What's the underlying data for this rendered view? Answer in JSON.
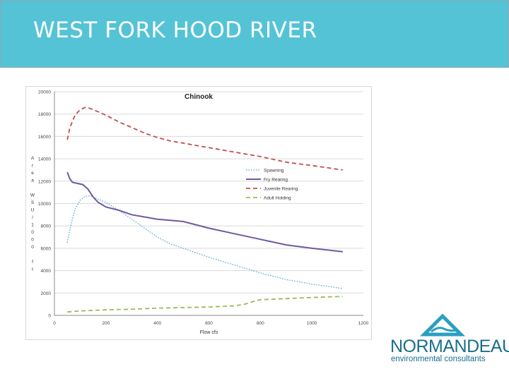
{
  "header": {
    "title": "WEST FORK HOOD RIVER"
  },
  "logo": {
    "name": "NORMANDEAU",
    "tagline": "environmental consultants",
    "accent_color": "#2a9fc1"
  },
  "colors": {
    "header_bg": "#55c3d6",
    "spawning": "#4fa6cf",
    "fry_rearing": "#6f5a9f",
    "juvenile_rearing": "#c0504d",
    "adult_holding": "#9bbb59"
  },
  "chart_data": {
    "type": "line",
    "title": "Chinook",
    "xlabel": "Flow cfs",
    "ylabel": "Area WSU/1000 ft",
    "xlim": [
      0,
      1200
    ],
    "ylim": [
      0,
      20000
    ],
    "x_ticks": [
      0,
      200,
      400,
      600,
      800,
      1000,
      1200
    ],
    "y_ticks": [
      0,
      2000,
      4000,
      6000,
      8000,
      10000,
      12000,
      14000,
      16000,
      18000,
      20000
    ],
    "grid": true,
    "legend_position": "right",
    "series": [
      {
        "name": "Spawning",
        "style": "dotted",
        "color": "#4fa6cf",
        "x": [
          50,
          65,
          80,
          100,
          120,
          140,
          160,
          200,
          250,
          300,
          350,
          400,
          450,
          500,
          600,
          700,
          800,
          900,
          1000,
          1120
        ],
        "y": [
          6500,
          8200,
          9500,
          10300,
          10650,
          10700,
          10500,
          10100,
          9400,
          8600,
          7800,
          7000,
          6400,
          6000,
          5200,
          4500,
          3800,
          3200,
          2800,
          2400
        ]
      },
      {
        "name": "Fry Rearing",
        "style": "solid",
        "color": "#6f5a9f",
        "x": [
          50,
          60,
          70,
          90,
          110,
          130,
          150,
          170,
          200,
          250,
          300,
          350,
          400,
          450,
          500,
          550,
          600,
          700,
          800,
          900,
          1000,
          1120
        ],
        "y": [
          12800,
          12200,
          11900,
          11800,
          11700,
          11300,
          10600,
          10100,
          9700,
          9400,
          9000,
          8800,
          8600,
          8500,
          8400,
          8100,
          7800,
          7300,
          6800,
          6300,
          6000,
          5700
        ]
      },
      {
        "name": "Juvenile Rearing",
        "style": "dashed",
        "color": "#c0504d",
        "x": [
          50,
          60,
          80,
          100,
          120,
          140,
          160,
          200,
          250,
          300,
          350,
          400,
          450,
          500,
          550,
          600,
          700,
          800,
          900,
          1000,
          1120
        ],
        "y": [
          15700,
          16800,
          17900,
          18400,
          18600,
          18500,
          18300,
          17900,
          17300,
          16800,
          16300,
          15900,
          15600,
          15400,
          15200,
          15000,
          14600,
          14200,
          13700,
          13400,
          13000
        ]
      },
      {
        "name": "Adult Holding",
        "style": "dashed",
        "color": "#9bbb59",
        "x": [
          50,
          100,
          200,
          300,
          400,
          500,
          600,
          700,
          740,
          780,
          800,
          900,
          1000,
          1120
        ],
        "y": [
          300,
          400,
          500,
          550,
          650,
          700,
          750,
          850,
          1000,
          1300,
          1400,
          1500,
          1600,
          1700
        ]
      }
    ]
  }
}
